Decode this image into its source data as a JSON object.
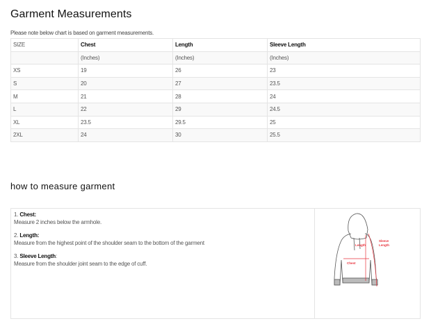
{
  "title": "Garment Measurements",
  "note": "Please note below chart is based on garment measurements.",
  "table": {
    "headers": [
      "SIZE",
      "Chest",
      "Length",
      "Sleeve Length"
    ],
    "units": [
      "",
      "(Inches)",
      "(Inches)",
      "(Inches)"
    ],
    "rows": [
      [
        "XS",
        "19",
        "26",
        "23"
      ],
      [
        "S",
        "20",
        "27",
        "23.5"
      ],
      [
        "M",
        "21",
        "28",
        "24"
      ],
      [
        "L",
        "22",
        "29",
        "24.5"
      ],
      [
        "XL",
        "23.5",
        "29.5",
        "25"
      ],
      [
        "2XL",
        "24",
        "30",
        "25.5"
      ]
    ]
  },
  "how_to": {
    "heading": "how to measure garment",
    "steps": [
      {
        "num": "1.",
        "label": "Chest:",
        "text": "Measure 2 inches below the armhole."
      },
      {
        "num": "2.",
        "label": "Length:",
        "text": "Measure from the highest point of the shoulder seam to the bottom of the garment"
      },
      {
        "num": "3.",
        "label": "Sleeve Length",
        "suffix": ":",
        "text": "Measure from the shoulder joint seam to the edge of cuff."
      }
    ],
    "diagram_labels": {
      "length": "Length",
      "sleeve1": "Sleeve",
      "sleeve2": "Length",
      "chest": "Chest"
    },
    "accent": "#e8323c"
  }
}
